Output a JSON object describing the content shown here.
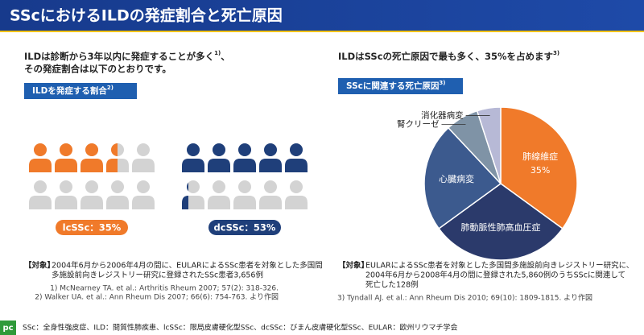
{
  "header": {
    "title": "SScにおけるILDの発症割合と死亡原因"
  },
  "left": {
    "lead_1": "ILDは診断から3年以内に発症することが多く",
    "lead_1_ref": "1)",
    "lead_1_end": "、",
    "lead_2": "その発症割合は以下のとおりです。",
    "badge": "ILDを発症する割合",
    "badge_ref": "2)",
    "groups": [
      {
        "label": "lcSSc：35%",
        "value": 35,
        "color": "#f07a2a"
      },
      {
        "label": "dcSSc：53%",
        "value": 53,
        "color": "#1f3f7a"
      }
    ],
    "subject_tag": "【対象】",
    "subject": [
      "2004年6月から2006年4月の間に、EULARによるSSc患者を対象とした多国間",
      "多施設前向きレジストリー研究に登録されたSSc患者3,656例"
    ],
    "refs": [
      "1) McNearney TA. et al.: Arthritis Rheum 2007; 57(2): 318-326.",
      "2) Walker UA. et al.: Ann Rheum Dis 2007; 66(6): 754-763. より作図"
    ]
  },
  "right": {
    "lead": "ILDはSScの死亡原因で最も多く、35%を占めます",
    "lead_ref": "3)",
    "badge": "SScに関連する死亡原因",
    "badge_ref": "3)",
    "subject_tag": "【対象】",
    "subject": [
      "EULARによるSSc患者を対象とした多国間多施設前向きレジストリー研究に、",
      "2004年6月から2008年4月の間に登録された5,860例のうちSScに関連して",
      "死亡した128例"
    ],
    "refs": [
      "3) Tyndall AJ. et al.: Ann Rheum Dis 2010; 69(10): 1809-1815. より作図"
    ]
  },
  "chart_data": {
    "type": "pie",
    "categories": [
      "肺線維症",
      "肺動脈性肺高血圧症",
      "心臓病変",
      "腎クリーゼ",
      "消化器病変"
    ],
    "values": [
      35,
      30,
      23,
      7,
      5
    ],
    "value_labels": [
      "35%",
      null,
      null,
      null,
      null
    ],
    "colors": [
      "#f07a2a",
      "#2b3a6b",
      "#3c5a8e",
      "#7f93a6",
      "#b7b9d6"
    ]
  },
  "footer": {
    "abbr": "SSc：全身性強皮症、ILD：間質性肺疾患、lcSSc：限局皮膚硬化型SSc、dcSSc：びまん皮膚硬化型SSc、EULAR：欧州リウマチ学会",
    "logo": "pc"
  }
}
